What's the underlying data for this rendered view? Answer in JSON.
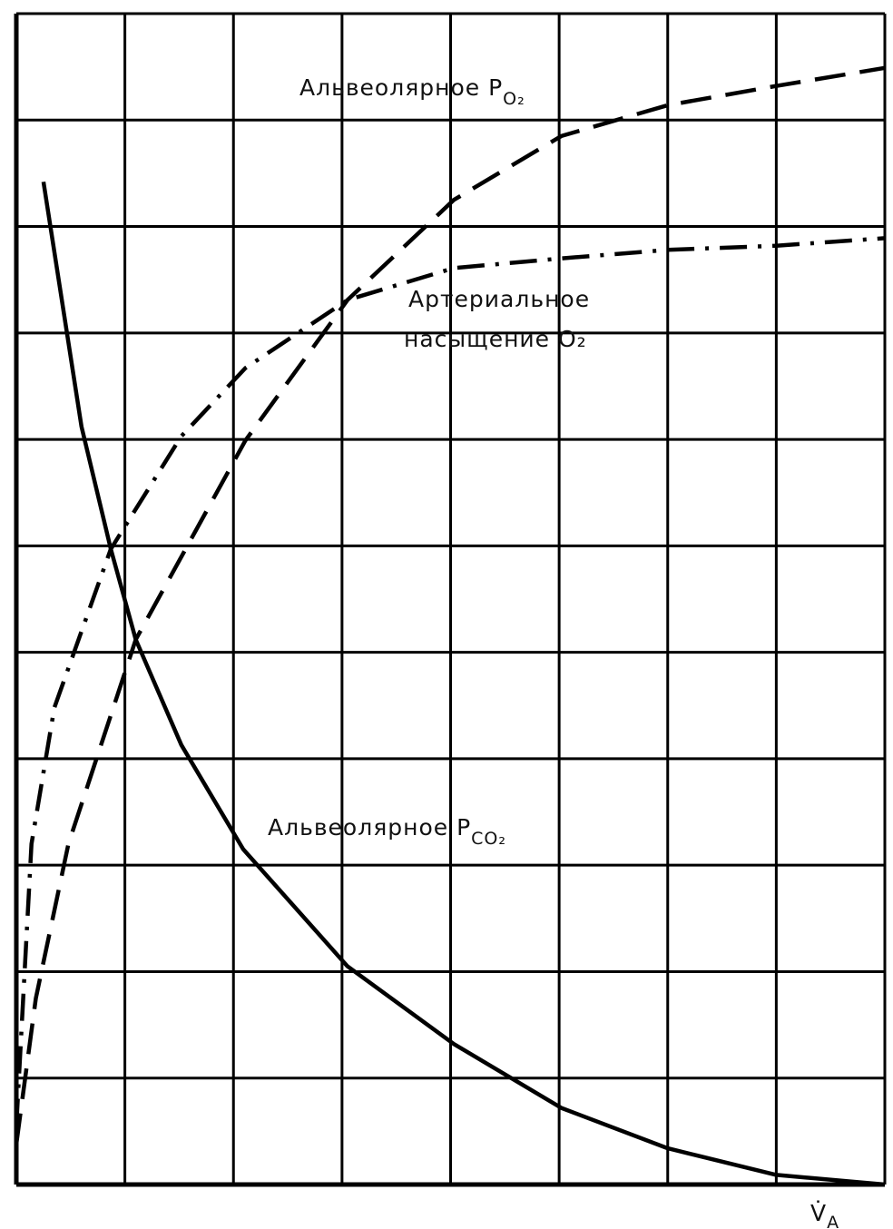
{
  "chart_data": {
    "type": "line",
    "xlabel": "V̇",
    "xlabel_sub": "A",
    "xlim": [
      0,
      8
    ],
    "ylim": [
      0,
      11
    ],
    "xticks": [
      0,
      1,
      2,
      3,
      4,
      5,
      6,
      7,
      8
    ],
    "yticks": [
      0,
      1,
      2,
      3,
      4,
      5,
      6,
      7,
      8,
      9,
      10,
      11
    ],
    "grid": true,
    "series": [
      {
        "label": "Альвеолярное P",
        "label_sub": "O₂",
        "color": "#000000",
        "dash": "dashed",
        "x": [
          0,
          0.18,
          0.48,
          1.1,
          2.11,
          3.05,
          4.03,
          5.02,
          6.0,
          7.0,
          8.0
        ],
        "values": [
          0.38,
          1.75,
          3.2,
          5.12,
          6.99,
          8.31,
          9.25,
          9.85,
          10.14,
          10.32,
          10.49
        ]
      },
      {
        "label": "Артериальное",
        "label2": "насыщение O₂",
        "color": "#000000",
        "dash": "dashdot",
        "x": [
          0,
          0.14,
          0.35,
          0.87,
          1.52,
          2.11,
          3.05,
          4.03,
          5.02,
          6.0,
          7.0,
          8.0
        ],
        "values": [
          0.55,
          3.2,
          4.48,
          5.97,
          7.03,
          7.67,
          8.31,
          8.61,
          8.7,
          8.78,
          8.82,
          8.89
        ]
      },
      {
        "label": "Альвеолярное P",
        "label_sub": "CO₂",
        "color": "#000000",
        "dash": "solid",
        "x": [
          0.25,
          0.6,
          0.87,
          1.1,
          1.52,
          2.09,
          3.05,
          4.03,
          5.02,
          6.0,
          7.0,
          8.0
        ],
        "values": [
          9.42,
          7.12,
          5.97,
          5.12,
          4.13,
          3.15,
          2.05,
          1.32,
          0.72,
          0.34,
          0.09,
          0
        ]
      }
    ]
  }
}
